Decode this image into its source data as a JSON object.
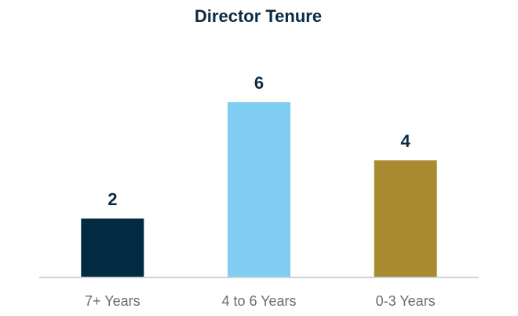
{
  "chart_data": {
    "type": "bar",
    "title": "Director Tenure",
    "categories": [
      "7+ Years",
      "4 to 6 Years",
      "0-3 Years"
    ],
    "values": [
      2,
      6,
      4
    ],
    "colors": [
      "#022a42",
      "#7fcdf0",
      "#a88a30"
    ]
  }
}
